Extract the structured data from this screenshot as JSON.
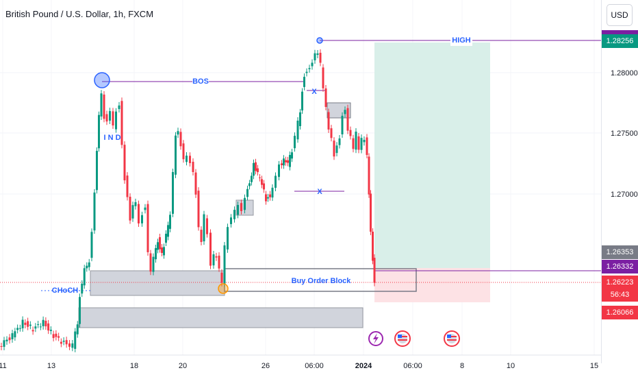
{
  "header": {
    "symbol_title": "British Pound / U.S. Dollar, 1h, FXCM",
    "currency_button": "USD"
  },
  "chart_data": {
    "type": "candlestick",
    "price_ticks": [
      "1.28000",
      "1.27500",
      "1.27000"
    ],
    "date_ticks": [
      "11",
      "13",
      "18",
      "20",
      "26",
      "06:00",
      "2024",
      "06:00",
      "8",
      "10",
      "15"
    ],
    "price_tags": [
      {
        "label": "1.28256",
        "color": "#089981"
      },
      {
        "label": "1.26353",
        "color": "#787b86"
      },
      {
        "label": "1.26332",
        "color": "#7b1fa2"
      },
      {
        "label": "1.26223",
        "color": "#f23645"
      },
      {
        "label": "56:43",
        "color": "#f23645"
      },
      {
        "label": "1.26066",
        "color": "#f23645"
      }
    ],
    "annotations": {
      "bos": "BOS",
      "high": "HIGH",
      "choch": "CHoCH",
      "ind": "I N D",
      "x1": "X",
      "x2": "X",
      "buy_order_block": "Buy Order Block"
    },
    "colors": {
      "up": "#089981",
      "down": "#f23645",
      "annotation": "#2962ff",
      "purple": "#7b1fa2"
    }
  }
}
